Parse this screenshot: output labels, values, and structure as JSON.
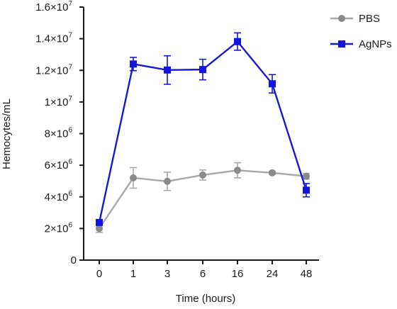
{
  "chart_data": {
    "type": "line",
    "xlabel": "Time (hours)",
    "ylabel": "Hemocytes/mL",
    "categories": [
      "0",
      "1",
      "3",
      "6",
      "16",
      "24",
      "48"
    ],
    "ylim": [
      0,
      16000000
    ],
    "y_ticks": [
      {
        "value": 0,
        "base": "0",
        "exp": ""
      },
      {
        "value": 2000000,
        "base": "2×10",
        "exp": "6"
      },
      {
        "value": 4000000,
        "base": "4×10",
        "exp": "6"
      },
      {
        "value": 6000000,
        "base": "6×10",
        "exp": "6"
      },
      {
        "value": 8000000,
        "base": "8×10",
        "exp": "6"
      },
      {
        "value": 10000000,
        "base": "1×10",
        "exp": "7"
      },
      {
        "value": 12000000,
        "base": "1.2×10",
        "exp": "7"
      },
      {
        "value": 14000000,
        "base": "1.4×10",
        "exp": "7"
      },
      {
        "value": 16000000,
        "base": "1.6×10",
        "exp": "7"
      }
    ],
    "legend_position": "top-right",
    "grid": false,
    "series": [
      {
        "name": "PBS",
        "color": "#a8a8a8",
        "marker_color": "#8a8a8a",
        "marker": "circle",
        "values": [
          2000000,
          5200000,
          4980000,
          5380000,
          5680000,
          5520000,
          5300000
        ],
        "errors": [
          250000,
          650000,
          580000,
          320000,
          480000,
          100000,
          180000
        ]
      },
      {
        "name": "AgNPs",
        "color": "#1818d8",
        "marker_color": "#1414e0",
        "marker": "square",
        "values": [
          2380000,
          12400000,
          12020000,
          12050000,
          13820000,
          11150000,
          4420000
        ],
        "errors": [
          120000,
          420000,
          900000,
          650000,
          550000,
          580000,
          420000
        ]
      }
    ]
  }
}
